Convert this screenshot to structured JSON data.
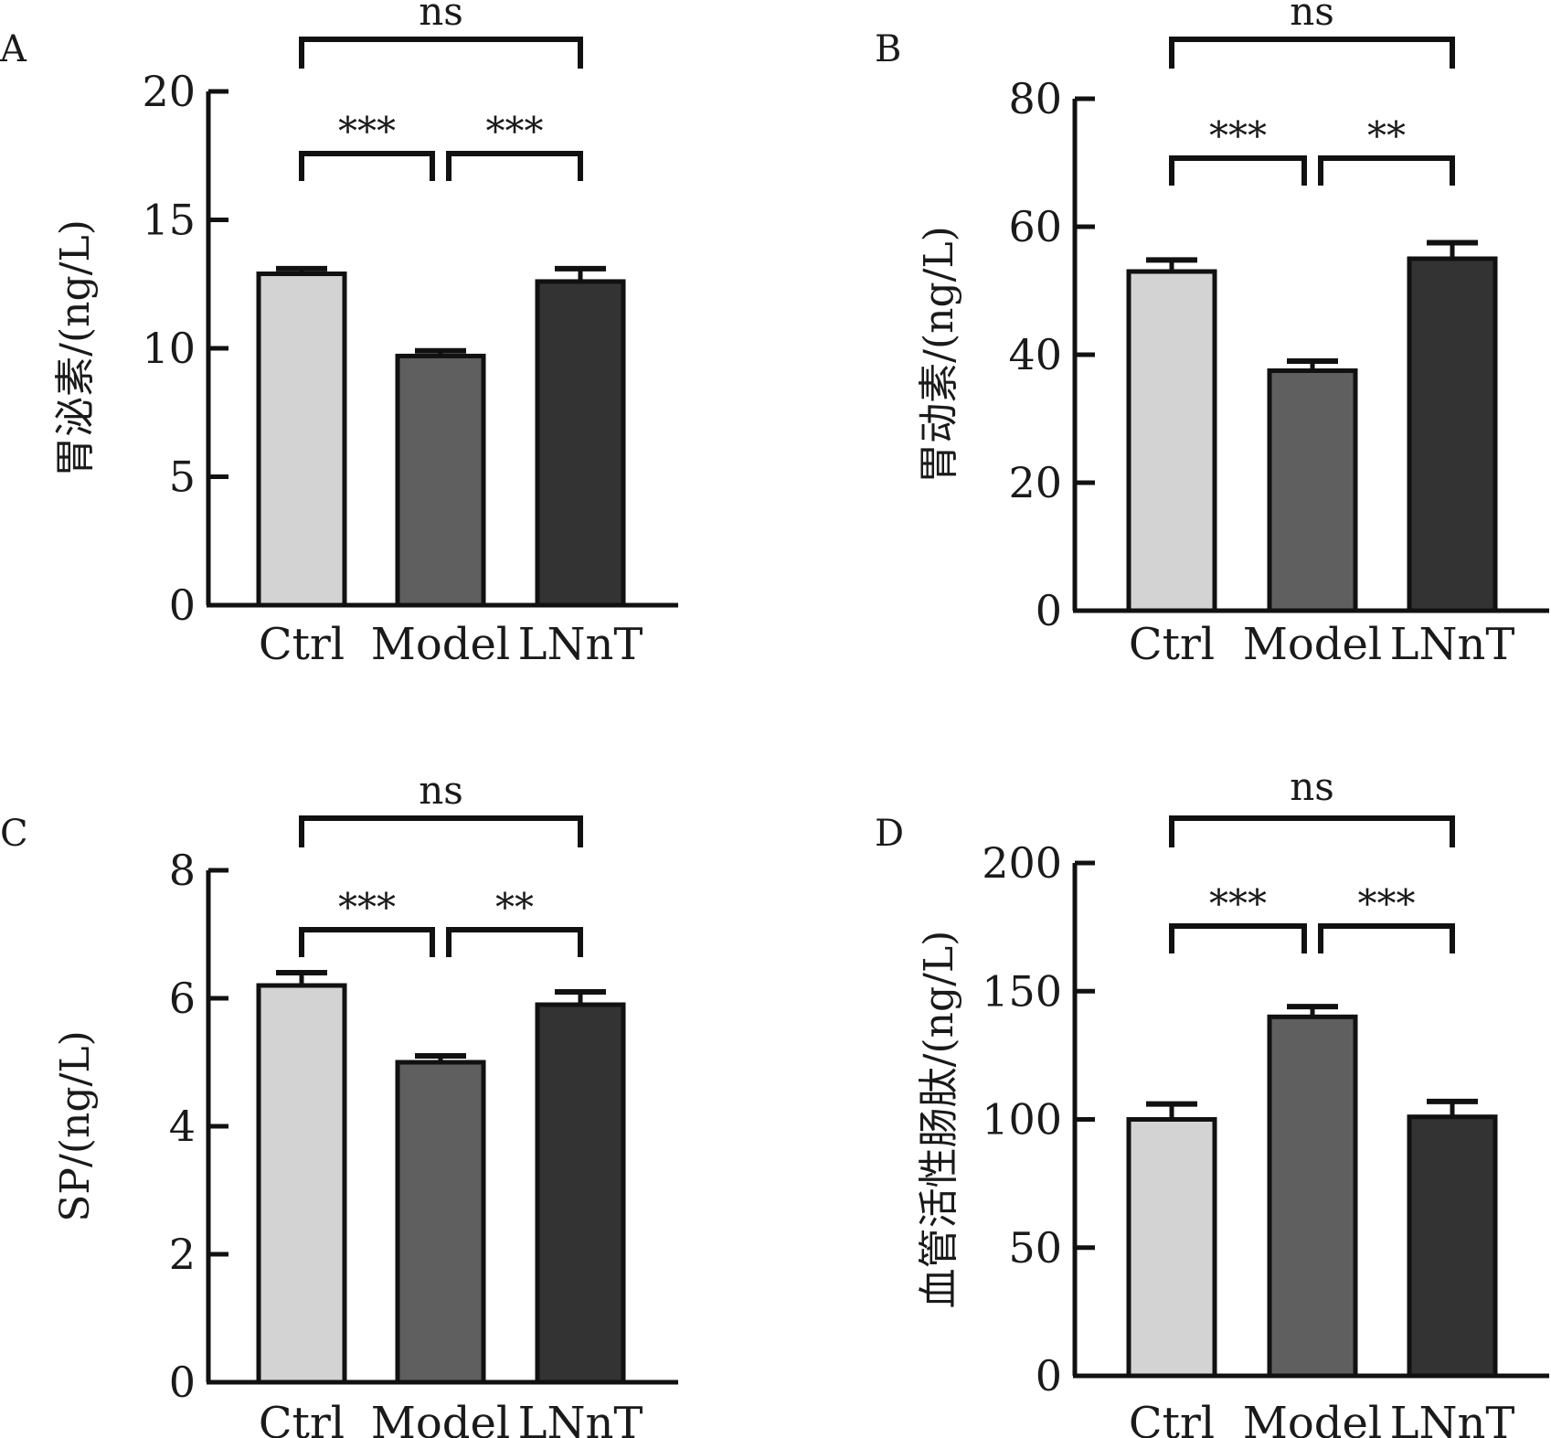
{
  "figure": {
    "colors": {
      "ctrl": "#d3d3d3",
      "model": "#5f5f5f",
      "lnnt": "#333333",
      "stroke": "#111111",
      "text": "#1a1a1a"
    }
  },
  "chart_data": [
    {
      "type": "bar",
      "panel_label": "A",
      "ylabel": "胃泌素/(ng/L)",
      "categories": [
        "Ctrl",
        "Model",
        "LNnT"
      ],
      "values": [
        12.9,
        9.7,
        12.6
      ],
      "errors": [
        0.2,
        0.2,
        0.5
      ],
      "ylim": [
        0,
        20
      ],
      "yticks": [
        "0",
        "5",
        "10",
        "15",
        "20"
      ],
      "ytick_values": [
        0,
        5,
        10,
        15,
        20
      ],
      "significance": [
        {
          "from": "Ctrl",
          "to": "LNnT",
          "label": "ns"
        },
        {
          "from": "Ctrl",
          "to": "Model",
          "label": "***"
        },
        {
          "from": "Model",
          "to": "LNnT",
          "label": "***"
        }
      ]
    },
    {
      "type": "bar",
      "panel_label": "B",
      "ylabel": "胃动素/(ng/L)",
      "categories": [
        "Ctrl",
        "Model",
        "LNnT"
      ],
      "values": [
        53,
        37.5,
        55
      ],
      "errors": [
        1.8,
        1.5,
        2.5
      ],
      "ylim": [
        0,
        80
      ],
      "yticks": [
        "0",
        "20",
        "40",
        "60",
        "80"
      ],
      "ytick_values": [
        0,
        20,
        40,
        60,
        80
      ],
      "significance": [
        {
          "from": "Ctrl",
          "to": "LNnT",
          "label": "ns"
        },
        {
          "from": "Ctrl",
          "to": "Model",
          "label": "***"
        },
        {
          "from": "Model",
          "to": "LNnT",
          "label": "**"
        }
      ]
    },
    {
      "type": "bar",
      "panel_label": "C",
      "ylabel": "SP/(ng/L)",
      "categories": [
        "Ctrl",
        "Model",
        "LNnT"
      ],
      "values": [
        6.2,
        5.0,
        5.9
      ],
      "errors": [
        0.2,
        0.1,
        0.2
      ],
      "ylim": [
        0,
        8
      ],
      "yticks": [
        "0",
        "2",
        "4",
        "6",
        "8"
      ],
      "ytick_values": [
        0,
        2,
        4,
        6,
        8
      ],
      "significance": [
        {
          "from": "Ctrl",
          "to": "LNnT",
          "label": "ns"
        },
        {
          "from": "Ctrl",
          "to": "Model",
          "label": "***"
        },
        {
          "from": "Model",
          "to": "LNnT",
          "label": "**"
        }
      ]
    },
    {
      "type": "bar",
      "panel_label": "D",
      "ylabel": "血管活性肠肽/(ng/L)",
      "categories": [
        "Ctrl",
        "Model",
        "LNnT"
      ],
      "values": [
        100,
        140,
        101
      ],
      "errors": [
        6,
        4,
        6
      ],
      "ylim": [
        0,
        200
      ],
      "yticks": [
        "0",
        "50",
        "100",
        "150",
        "200"
      ],
      "ytick_values": [
        0,
        50,
        100,
        150,
        200
      ],
      "significance": [
        {
          "from": "Ctrl",
          "to": "LNnT",
          "label": "ns"
        },
        {
          "from": "Ctrl",
          "to": "Model",
          "label": "***"
        },
        {
          "from": "Model",
          "to": "LNnT",
          "label": "***"
        }
      ]
    }
  ]
}
